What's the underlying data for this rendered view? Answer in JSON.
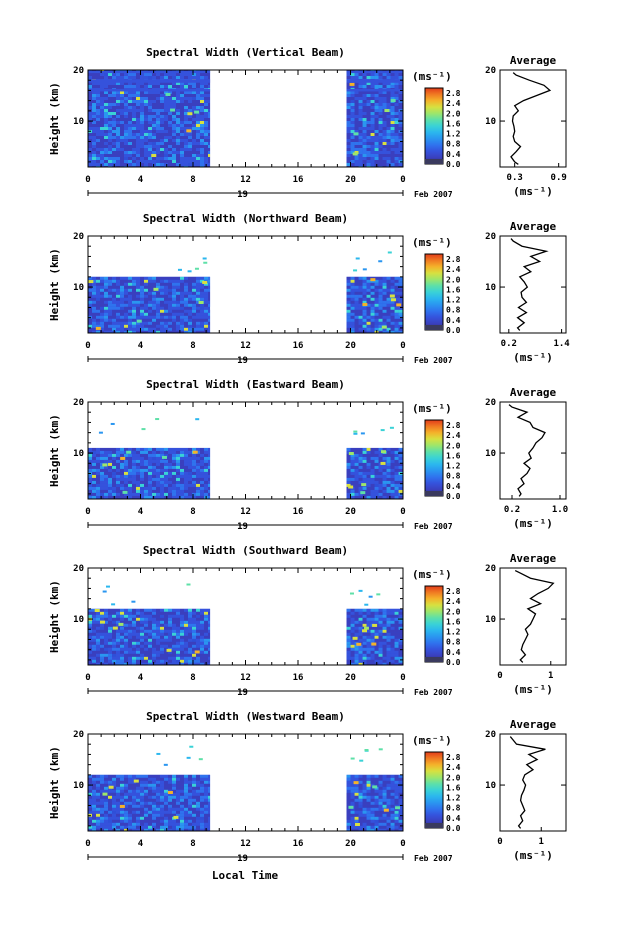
{
  "colors": {
    "scale": [
      "#2a2c6e",
      "#3a3fbe",
      "#3552dc",
      "#2f73ee",
      "#2a96f0",
      "#2bb7ee",
      "#3ad2d6",
      "#5ee0a8",
      "#9ee66a",
      "#d8e040",
      "#f4b22a",
      "#f07a22",
      "#e23c1a"
    ],
    "background": "#2f4fd8",
    "profile_line": "#000000"
  },
  "xlabel": "Local Time",
  "chart_data": [
    {
      "type": "heatmap",
      "title": "Spectral Width (Vertical Beam)",
      "ylabel": "Height (km)",
      "yticks": [
        "20",
        "10"
      ],
      "ylim": [
        1,
        20
      ],
      "xticks": [
        "0",
        "4",
        "8",
        "12",
        "16",
        "20",
        "0"
      ],
      "xlim": [
        0,
        24
      ],
      "date_day": "19",
      "date_label": "Feb 2007",
      "colorbar_unit": "(ms⁻¹)",
      "colorbar_ticks": [
        "2.8",
        "2.4",
        "2.0",
        "1.6",
        "1.2",
        "0.8",
        "0.4",
        "0.0"
      ],
      "colorbar_range": [
        0,
        3
      ],
      "data_blocks": [
        [
          0,
          9.3
        ],
        [
          19.7,
          24
        ]
      ],
      "heights": [
        1,
        20
      ],
      "profile": {
        "title": "Average",
        "xlabel": "(ms⁻¹)",
        "xticks": [
          "0.3",
          "0.9"
        ],
        "xlim": [
          0.1,
          1.0
        ],
        "yticks": [
          "20",
          "10"
        ],
        "heights": [
          1.5,
          2,
          3,
          4,
          5,
          6,
          7,
          8,
          9,
          10,
          11,
          12,
          13,
          14,
          15,
          16,
          17,
          18,
          19,
          19.5
        ],
        "values": [
          0.35,
          0.3,
          0.25,
          0.32,
          0.38,
          0.3,
          0.28,
          0.3,
          0.29,
          0.27,
          0.28,
          0.35,
          0.3,
          0.42,
          0.6,
          0.78,
          0.7,
          0.5,
          0.32,
          0.28
        ]
      }
    },
    {
      "type": "heatmap",
      "title": "Spectral Width (Northward Beam)",
      "ylabel": "Height (km)",
      "yticks": [
        "20",
        "10"
      ],
      "ylim": [
        1,
        20
      ],
      "xticks": [
        "0",
        "4",
        "8",
        "12",
        "16",
        "20",
        "0"
      ],
      "xlim": [
        0,
        24
      ],
      "date_day": "19",
      "date_label": "Feb 2007",
      "colorbar_unit": "(ms⁻¹)",
      "colorbar_ticks": [
        "2.8",
        "2.4",
        "2.0",
        "1.6",
        "1.2",
        "0.8",
        "0.4",
        "0.0"
      ],
      "colorbar_range": [
        0,
        3
      ],
      "data_blocks": [
        [
          0,
          9.3
        ],
        [
          19.7,
          24
        ]
      ],
      "heights": [
        1,
        12
      ],
      "profile": {
        "title": "Average",
        "xlabel": "(ms⁻¹)",
        "xticks": [
          "0.2",
          "1.4"
        ],
        "xlim": [
          0.0,
          1.5
        ],
        "yticks": [
          "20",
          "10"
        ],
        "heights": [
          1.5,
          2,
          3,
          4,
          5,
          6,
          7,
          8,
          9,
          10,
          11,
          12,
          13,
          14,
          15,
          16,
          17,
          18,
          19,
          19.5
        ],
        "values": [
          0.45,
          0.4,
          0.55,
          0.4,
          0.6,
          0.42,
          0.6,
          0.5,
          0.48,
          0.62,
          0.55,
          0.45,
          0.7,
          0.55,
          0.9,
          0.7,
          1.05,
          0.5,
          0.3,
          0.25
        ]
      }
    },
    {
      "type": "heatmap",
      "title": "Spectral Width (Eastward Beam)",
      "ylabel": "Height (km)",
      "yticks": [
        "20",
        "10"
      ],
      "ylim": [
        1,
        20
      ],
      "xticks": [
        "0",
        "4",
        "8",
        "12",
        "16",
        "20",
        "0"
      ],
      "xlim": [
        0,
        24
      ],
      "date_day": "19",
      "date_label": "Feb 2007",
      "colorbar_unit": "(ms⁻¹)",
      "colorbar_ticks": [
        "2.8",
        "2.4",
        "2.0",
        "1.6",
        "1.2",
        "0.8",
        "0.4",
        "0.0"
      ],
      "colorbar_range": [
        0,
        3
      ],
      "data_blocks": [
        [
          0,
          9.3
        ],
        [
          19.7,
          24
        ]
      ],
      "heights": [
        1,
        11
      ],
      "profile": {
        "title": "Average",
        "xlabel": "(ms⁻¹)",
        "xticks": [
          "0.2",
          "1.0"
        ],
        "xlim": [
          0.0,
          1.1
        ],
        "yticks": [
          "20",
          "10"
        ],
        "heights": [
          1.5,
          2,
          3,
          4,
          5,
          6,
          7,
          8,
          9,
          10,
          11,
          12,
          13,
          14,
          15,
          16,
          17,
          18,
          19,
          19.5
        ],
        "values": [
          0.32,
          0.35,
          0.3,
          0.4,
          0.35,
          0.45,
          0.5,
          0.4,
          0.52,
          0.48,
          0.55,
          0.6,
          0.7,
          0.75,
          0.55,
          0.5,
          0.3,
          0.45,
          0.2,
          0.15
        ]
      }
    },
    {
      "type": "heatmap",
      "title": "Spectral Width (Southward Beam)",
      "ylabel": "Height (km)",
      "yticks": [
        "20",
        "10"
      ],
      "ylim": [
        1,
        20
      ],
      "xticks": [
        "0",
        "4",
        "8",
        "12",
        "16",
        "20",
        "0"
      ],
      "xlim": [
        0,
        24
      ],
      "date_day": "19",
      "date_label": "Feb 2007",
      "colorbar_unit": "(ms⁻¹)",
      "colorbar_ticks": [
        "2.8",
        "2.4",
        "2.0",
        "1.6",
        "1.2",
        "0.8",
        "0.4",
        "0.0"
      ],
      "colorbar_range": [
        0,
        3
      ],
      "data_blocks": [
        [
          0,
          9.3
        ],
        [
          19.7,
          24
        ]
      ],
      "heights": [
        1,
        12
      ],
      "profile": {
        "title": "Average",
        "xlabel": "(ms⁻¹)",
        "xticks": [
          "0",
          "1"
        ],
        "xlim": [
          0.0,
          1.3
        ],
        "yticks": [
          "20",
          "10"
        ],
        "heights": [
          1.5,
          2,
          3,
          4,
          5,
          6,
          7,
          8,
          9,
          10,
          11,
          12,
          13,
          14,
          15,
          16,
          17,
          18,
          19,
          19.5
        ],
        "values": [
          0.45,
          0.4,
          0.5,
          0.42,
          0.45,
          0.5,
          0.55,
          0.5,
          0.6,
          0.65,
          0.7,
          0.55,
          0.8,
          0.6,
          0.75,
          0.95,
          1.05,
          0.6,
          0.4,
          0.3
        ]
      }
    },
    {
      "type": "heatmap",
      "title": "Spectral Width (Westward Beam)",
      "ylabel": "Height (km)",
      "yticks": [
        "20",
        "10"
      ],
      "ylim": [
        1,
        20
      ],
      "xticks": [
        "0",
        "4",
        "8",
        "12",
        "16",
        "20",
        "0"
      ],
      "xlim": [
        0,
        24
      ],
      "date_day": "19",
      "date_label": "Feb 2007",
      "colorbar_unit": "(ms⁻¹)",
      "colorbar_ticks": [
        "2.8",
        "2.4",
        "2.0",
        "1.6",
        "1.2",
        "0.8",
        "0.4",
        "0.0"
      ],
      "colorbar_range": [
        0,
        3
      ],
      "data_blocks": [
        [
          0,
          9.3
        ],
        [
          19.7,
          24
        ]
      ],
      "heights": [
        1,
        12
      ],
      "profile": {
        "title": "Average",
        "xlabel": "(ms⁻¹)",
        "xticks": [
          "0",
          "1"
        ],
        "xlim": [
          0.0,
          1.6
        ],
        "yticks": [
          "20",
          "10"
        ],
        "heights": [
          1.5,
          2,
          3,
          4,
          5,
          6,
          7,
          8,
          9,
          10,
          11,
          12,
          13,
          14,
          15,
          16,
          17,
          18,
          19,
          19.5
        ],
        "values": [
          0.5,
          0.45,
          0.55,
          0.5,
          0.6,
          0.55,
          0.5,
          0.52,
          0.58,
          0.62,
          0.55,
          0.6,
          0.8,
          0.65,
          0.9,
          0.7,
          1.1,
          0.4,
          0.3,
          0.25
        ]
      }
    }
  ]
}
